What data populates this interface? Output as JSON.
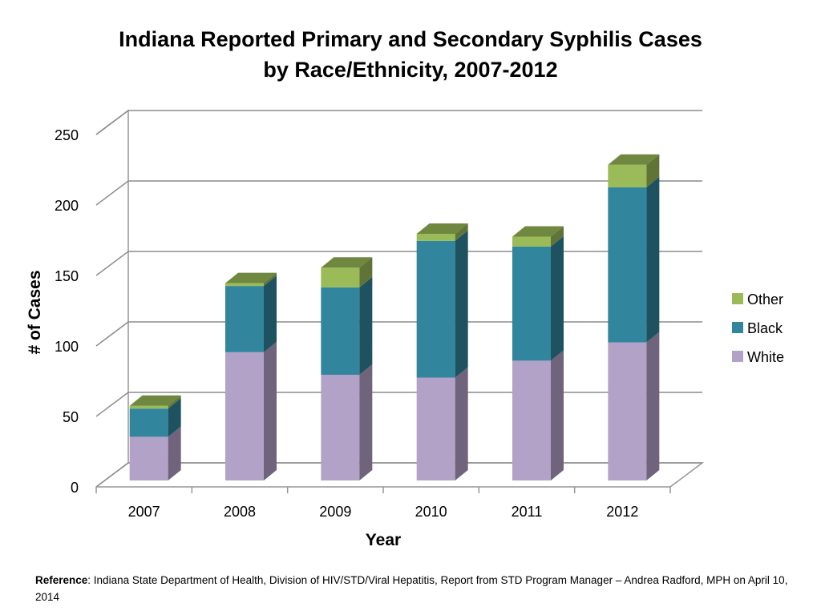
{
  "chart_data": {
    "type": "bar",
    "stacked": true,
    "three_d": true,
    "title_line1": "Indiana Reported Primary and Secondary Syphilis Cases",
    "title_line2": "by Race/Ethnicity, 2007-2012",
    "xlabel": "Year",
    "ylabel": "# of Cases",
    "ylim": [
      0,
      250
    ],
    "yticks": [
      0,
      50,
      100,
      150,
      200,
      250
    ],
    "grid": true,
    "legend_position": "right",
    "categories": [
      "2007",
      "2008",
      "2009",
      "2010",
      "2011",
      "2012"
    ],
    "series": [
      {
        "name": "White",
        "color": "#b3a2c7",
        "values": [
          31,
          91,
          75,
          73,
          85,
          98
        ]
      },
      {
        "name": "Black",
        "color": "#31859c",
        "values": [
          20,
          47,
          62,
          97,
          81,
          110
        ]
      },
      {
        "name": "Other",
        "color": "#9bbb59",
        "values": [
          2,
          2,
          14,
          5,
          7,
          16
        ]
      }
    ]
  },
  "reference": {
    "label": "Reference",
    "text": ":  Indiana State Department of Health, Division of HIV/STD/Viral Hepatitis, Report from STD Program Manager – Andrea Radford, MPH on April 10, 2014"
  }
}
